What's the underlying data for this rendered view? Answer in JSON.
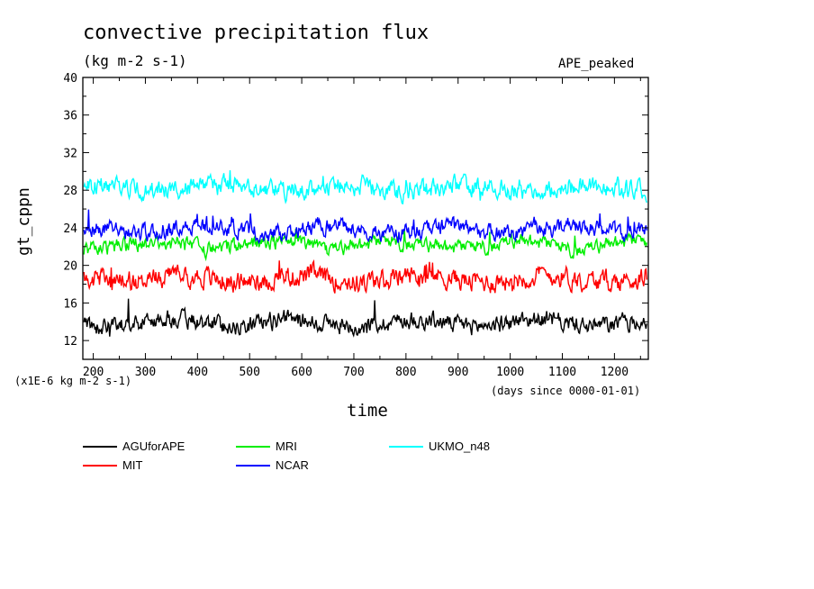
{
  "chart_data": {
    "type": "line",
    "title": "convective precipitation flux",
    "subtitle": "(kg m-2 s-1)",
    "tag": "APE_peaked",
    "ylabel": "gt_cppn",
    "xlabel": "time",
    "ylim": [
      10,
      40
    ],
    "xlim": [
      180,
      1265
    ],
    "yticks": [
      12,
      16,
      20,
      24,
      28,
      32,
      36,
      40
    ],
    "xticks": [
      200,
      300,
      400,
      500,
      600,
      700,
      800,
      900,
      1000,
      1100,
      1200
    ],
    "yscale_note": "(x1E-6 kg m-2 s-1)",
    "xunit_note": "(days since 0000-01-01)",
    "series": [
      {
        "name": "AGUforAPE",
        "color": "#000000",
        "mean": 13.9,
        "noise": 0.75,
        "spike": 2.6,
        "seed": 11
      },
      {
        "name": "MIT",
        "color": "#ff0000",
        "mean": 18.6,
        "noise": 0.9,
        "spike": 1.8,
        "seed": 23
      },
      {
        "name": "MRI",
        "color": "#00ee00",
        "mean": 22.1,
        "noise": 0.65,
        "spike": 1.2,
        "seed": 37
      },
      {
        "name": "NCAR",
        "color": "#0000ff",
        "mean": 23.8,
        "noise": 0.7,
        "spike": 1.6,
        "seed": 53
      },
      {
        "name": "UKMO_n48",
        "color": "#00ffff",
        "mean": 28.2,
        "noise": 0.8,
        "spike": 1.6,
        "seed": 71
      }
    ]
  }
}
